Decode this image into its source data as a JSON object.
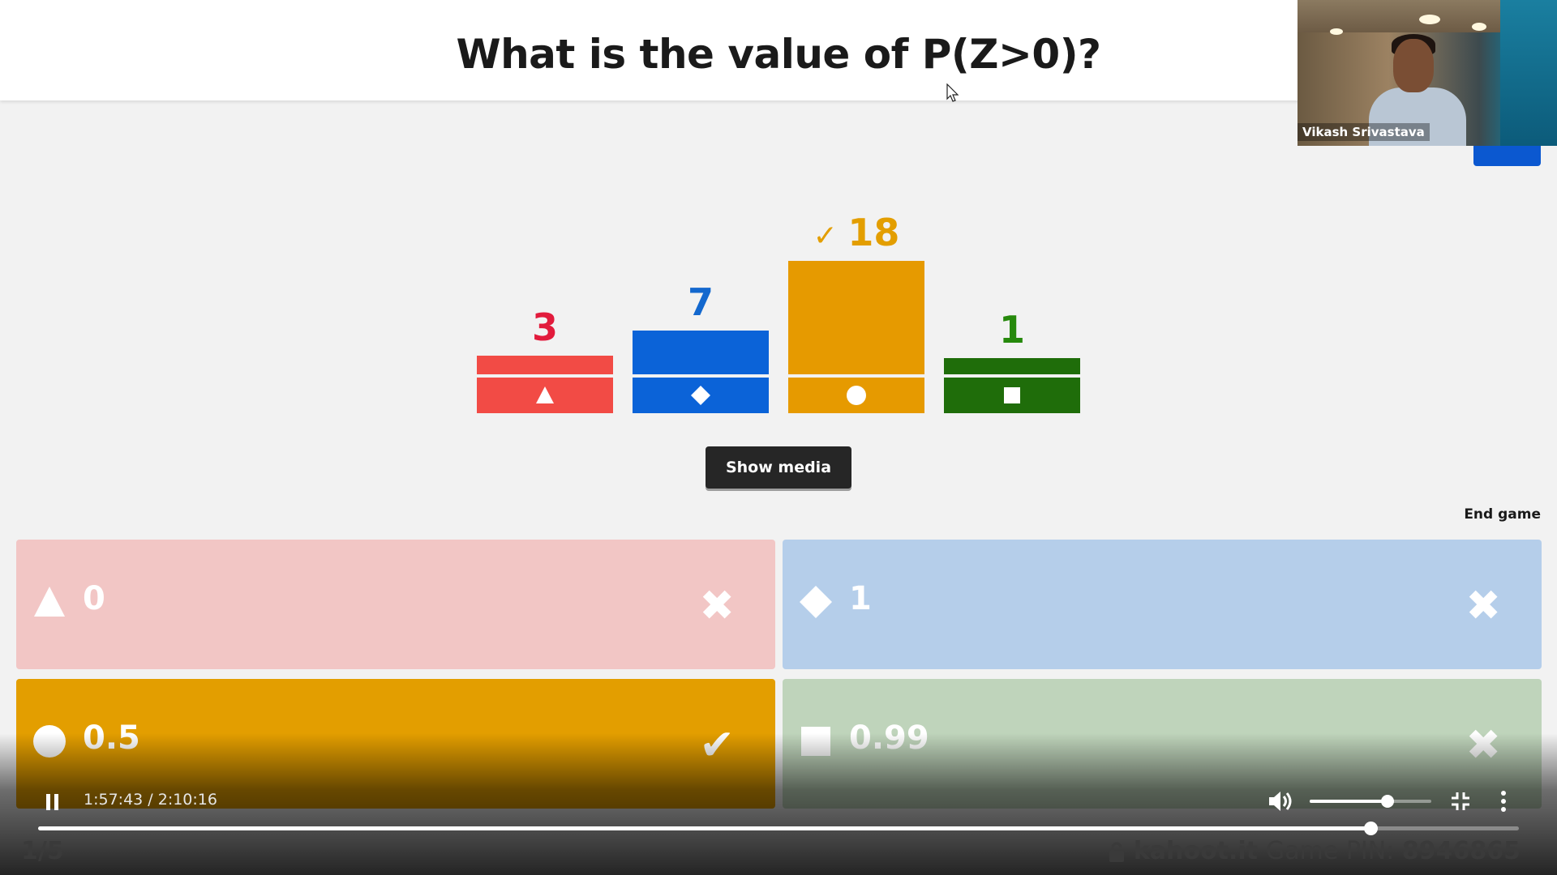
{
  "question": "What is the value of P(Z>0)?",
  "webcam": {
    "participant_name": "Vikash Srivastava"
  },
  "results": [
    {
      "shape": "triangle-icon",
      "count": "3",
      "correct": false,
      "color": "#e21b3c",
      "bar_color": "#f24b45"
    },
    {
      "shape": "diamond-icon",
      "count": "7",
      "correct": false,
      "color": "#1368ce",
      "bar_color": "#0b63d8"
    },
    {
      "shape": "circle-icon",
      "count": "18",
      "correct": true,
      "color": "#e39e00",
      "bar_color": "#e69a00"
    },
    {
      "shape": "square-icon",
      "count": "1",
      "correct": false,
      "color": "#26890c",
      "bar_color": "#1f6d0a"
    }
  ],
  "correct_mark": "✓",
  "buttons": {
    "show_media": "Show media",
    "end_game": "End game"
  },
  "answers": [
    {
      "shape": "triangle-icon",
      "text": "0",
      "status": "incorrect",
      "color": "#f2c6c5"
    },
    {
      "shape": "diamond-icon",
      "text": "1",
      "status": "incorrect",
      "color": "#b5ceea"
    },
    {
      "shape": "circle-icon",
      "text": "0.5",
      "status": "correct",
      "color": "#e39e00"
    },
    {
      "shape": "square-icon",
      "text": "0.99",
      "status": "incorrect",
      "color": "#bfd4bb"
    }
  ],
  "player": {
    "time": "1:57:43 / 2:10:16",
    "progress": 0.9,
    "volume": 0.64
  },
  "footer": {
    "question_count": "1/5",
    "site": "kahoot.it",
    "pin_label": "Game PIN:",
    "pin": "8946865"
  }
}
